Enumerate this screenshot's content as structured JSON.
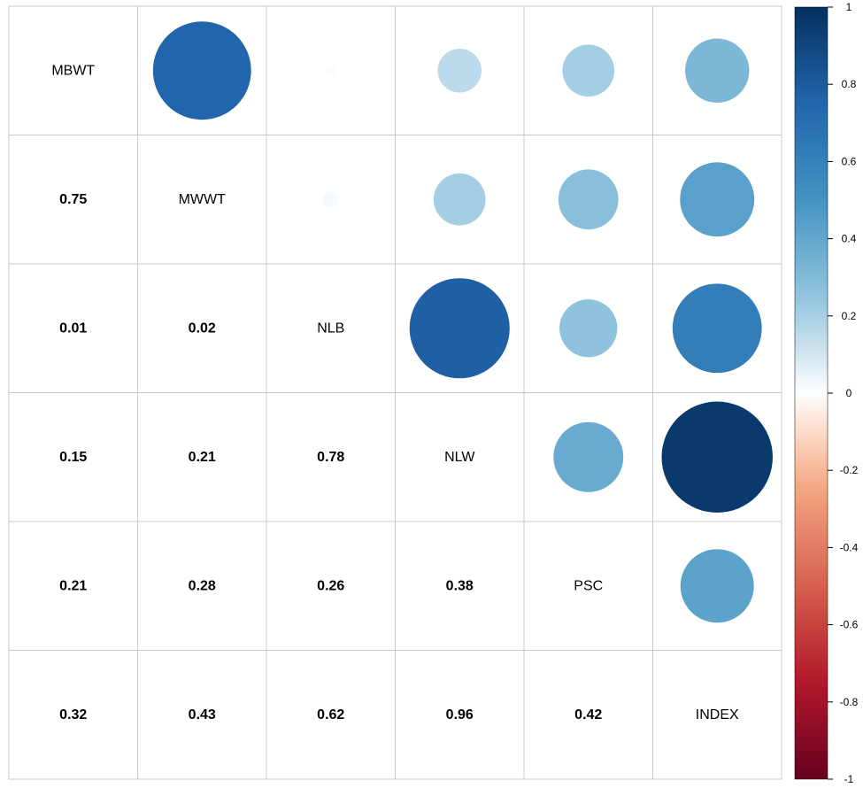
{
  "chart_data": {
    "type": "heatmap",
    "variables": [
      "MBWT",
      "MWWT",
      "NLB",
      "NLW",
      "PSC",
      "INDEX"
    ],
    "matrix": [
      [
        1.0,
        0.75,
        0.01,
        0.15,
        0.21,
        0.32
      ],
      [
        0.75,
        1.0,
        0.02,
        0.21,
        0.28,
        0.43
      ],
      [
        0.01,
        0.02,
        1.0,
        0.78,
        0.26,
        0.62
      ],
      [
        0.15,
        0.21,
        0.78,
        1.0,
        0.38,
        0.96
      ],
      [
        0.21,
        0.28,
        0.26,
        0.38,
        1.0,
        0.42
      ],
      [
        0.32,
        0.43,
        0.62,
        0.96,
        0.42,
        1.0
      ]
    ],
    "lower_labels": [
      {
        "row": 1,
        "col": 0,
        "text": "0.75"
      },
      {
        "row": 2,
        "col": 0,
        "text": "0.01"
      },
      {
        "row": 2,
        "col": 1,
        "text": "0.02"
      },
      {
        "row": 3,
        "col": 0,
        "text": "0.15"
      },
      {
        "row": 3,
        "col": 1,
        "text": "0.21"
      },
      {
        "row": 3,
        "col": 2,
        "text": "0.78"
      },
      {
        "row": 4,
        "col": 0,
        "text": "0.21"
      },
      {
        "row": 4,
        "col": 1,
        "text": "0.28"
      },
      {
        "row": 4,
        "col": 2,
        "text": "0.26"
      },
      {
        "row": 4,
        "col": 3,
        "text": "0.38"
      },
      {
        "row": 5,
        "col": 0,
        "text": "0.32"
      },
      {
        "row": 5,
        "col": 1,
        "text": "0.43"
      },
      {
        "row": 5,
        "col": 2,
        "text": "0.62"
      },
      {
        "row": 5,
        "col": 3,
        "text": "0.96"
      },
      {
        "row": 5,
        "col": 4,
        "text": "0.42"
      }
    ],
    "upper_display": "circles",
    "diagonal_display": "variable names",
    "lower_display": "numbers",
    "color_scale": {
      "range": [
        -1,
        1
      ],
      "ticks": [
        "1",
        "0.8",
        "0.6",
        "0.4",
        "0.2",
        "0",
        "-0.2",
        "-0.4",
        "-0.6",
        "-0.8",
        "-1"
      ],
      "stops": [
        {
          "value": -1.0,
          "color": "#67001F"
        },
        {
          "value": -0.75,
          "color": "#B2182B"
        },
        {
          "value": -0.5,
          "color": "#D6604D"
        },
        {
          "value": -0.25,
          "color": "#F4A582"
        },
        {
          "value": -0.1,
          "color": "#FDDBC7"
        },
        {
          "value": 0.0,
          "color": "#FFFFFF"
        },
        {
          "value": 0.1,
          "color": "#D1E5F0"
        },
        {
          "value": 0.25,
          "color": "#92C5DE"
        },
        {
          "value": 0.5,
          "color": "#4393C3"
        },
        {
          "value": 0.75,
          "color": "#2166AC"
        },
        {
          "value": 1.0,
          "color": "#053061"
        }
      ]
    },
    "legend_placement": "right",
    "grid": true
  }
}
